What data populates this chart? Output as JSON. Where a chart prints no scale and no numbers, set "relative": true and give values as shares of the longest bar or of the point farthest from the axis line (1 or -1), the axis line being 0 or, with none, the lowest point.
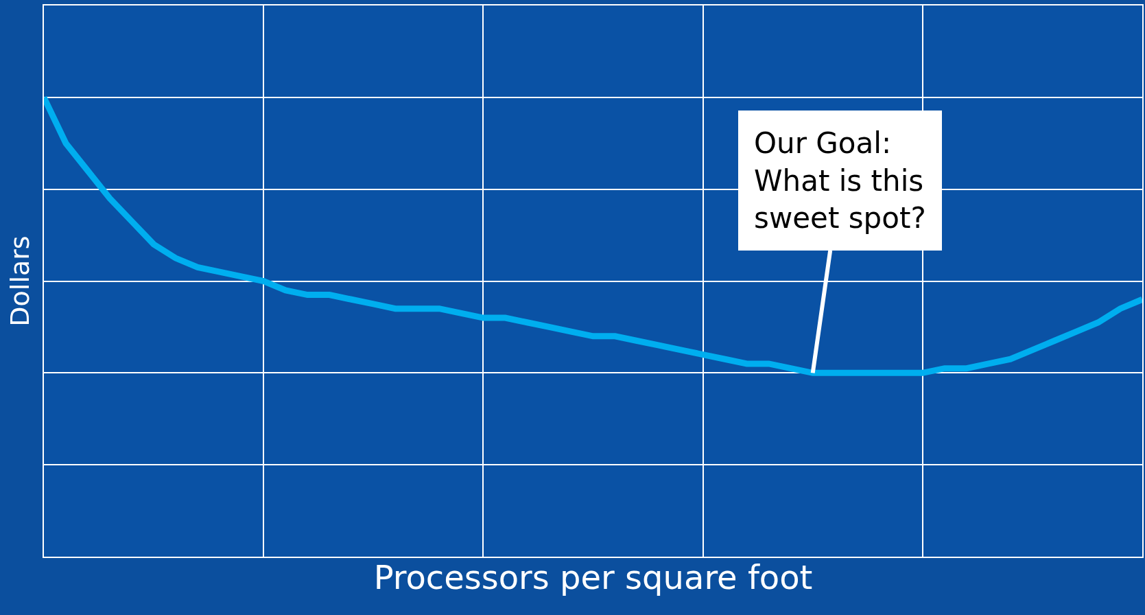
{
  "chart_data": {
    "type": "line",
    "relative": true,
    "xlabel": "Processors per square foot",
    "ylabel": "Dollars",
    "categories": [
      null,
      null,
      null,
      null,
      null,
      null,
      null,
      null,
      null,
      null,
      null,
      null,
      null,
      null,
      null,
      null,
      null,
      null,
      null,
      null,
      null,
      null,
      null,
      null,
      null,
      null,
      null,
      null,
      null,
      null,
      null,
      null,
      null,
      null,
      null,
      null,
      null,
      null,
      null,
      null,
      null,
      null,
      null,
      null,
      null,
      null,
      null,
      null,
      null,
      null,
      null
    ],
    "series": [
      {
        "color": "#00aeef",
        "values": [
          1.0,
          0.9,
          0.84,
          0.78,
          0.73,
          0.68,
          0.65,
          0.63,
          0.62,
          0.61,
          0.6,
          0.58,
          0.57,
          0.57,
          0.56,
          0.55,
          0.54,
          0.54,
          0.54,
          0.53,
          0.52,
          0.52,
          0.51,
          0.5,
          0.49,
          0.48,
          0.48,
          0.47,
          0.46,
          0.45,
          0.44,
          0.43,
          0.42,
          0.42,
          0.41,
          0.4,
          0.4,
          0.4,
          0.4,
          0.4,
          0.4,
          0.41,
          0.41,
          0.42,
          0.43,
          0.45,
          0.47,
          0.49,
          0.51,
          0.54,
          0.56
        ]
      }
    ],
    "annotations": [
      "Our Goal:\nWhat is this\nsweet spot?"
    ],
    "grid": true,
    "legend": false,
    "marker": "none",
    "line_style": "solid",
    "tick_labels": false
  }
}
